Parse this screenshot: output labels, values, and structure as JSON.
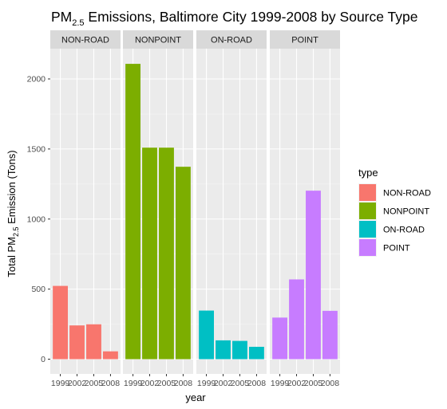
{
  "chart_data": {
    "type": "bar",
    "title_main": "PM",
    "title_sub": "2.5",
    "title_rest": " Emissions, Baltimore City 1999-2008 by Source Type",
    "xlabel": "year",
    "ylabel_main": "Total PM",
    "ylabel_sub": "2.5",
    "ylabel_rest": " Emission (Tons)",
    "categories": [
      "1999",
      "2002",
      "2005",
      "2008"
    ],
    "ylim": [
      0,
      2200
    ],
    "yticks": [
      0,
      500,
      1000,
      1500,
      2000
    ],
    "ytick_labels": [
      "0",
      "500",
      "1000",
      "1500",
      "2000"
    ],
    "grid": true,
    "legend_title": "type",
    "legend_position": "right",
    "facets": [
      {
        "name": "NON-ROAD",
        "color": "#F8766D",
        "values": [
          522.94,
          240.85,
          248.93,
          55.82
        ]
      },
      {
        "name": "NONPOINT",
        "color": "#7CAE00",
        "values": [
          2107.63,
          1509.5,
          1509.5,
          1373.21
        ]
      },
      {
        "name": "ON-ROAD",
        "color": "#00BFC4",
        "values": [
          346.82,
          134.31,
          130.43,
          88.28
        ]
      },
      {
        "name": "POINT",
        "color": "#C77CFF",
        "values": [
          296.8,
          569.26,
          1202.49,
          344.98
        ]
      }
    ]
  }
}
